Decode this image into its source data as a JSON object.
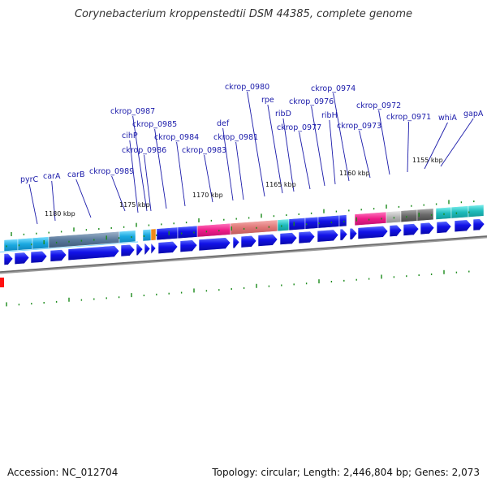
{
  "title": "Corynebacterium kroppenstedtii DSM 44385, complete genome",
  "accession": "Accession: NC_012704",
  "topology": "Topology: circular; Length: 2,446,804 bp; Genes: 2,073",
  "colors": {
    "cds": "#1010e0",
    "gene_label": "#1a1aaa",
    "cog_cyan": "#2ab8e8",
    "cog_teal": "#2cc4c4",
    "cog_pink": "#f0208c",
    "cog_salmon": "#e87c7c",
    "cog_grey": "#b0b0b0",
    "cog_darkgrey": "#707070",
    "tick": "#1a8a1a",
    "backbone": "#808080"
  },
  "scale_labels": [
    "1180 kbp",
    "1175 kbp",
    "1170 kbp",
    "1165 kbp",
    "1160 kbp",
    "1155 kbp"
  ],
  "gene_labels": [
    "pyrC",
    "carA",
    "carB",
    "ckrop_0989",
    "cihP",
    "ckrop_0987",
    "ckrop_0986",
    "ckrop_0985",
    "ckrop_0984",
    "ckrop_0983",
    "def",
    "ckrop_0981",
    "ckrop_0980",
    "rpe",
    "ribD",
    "ckrop_0977",
    "ckrop_0976",
    "ribH",
    "ckrop_0974",
    "ckrop_0973",
    "ckrop_0972",
    "ckrop_0971",
    "whiA",
    "gapA"
  ]
}
